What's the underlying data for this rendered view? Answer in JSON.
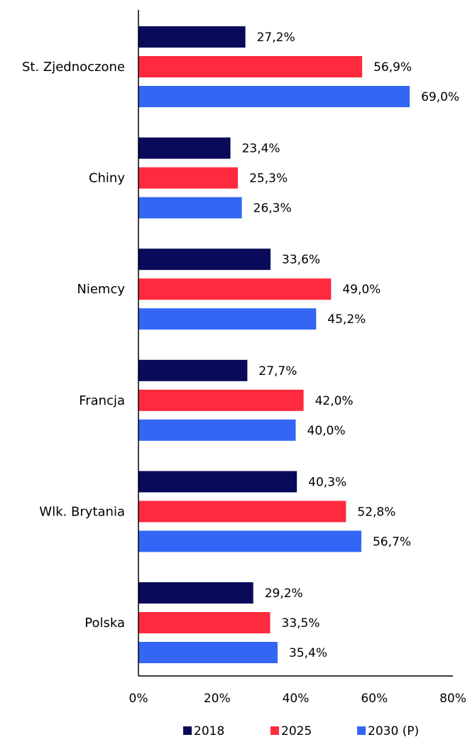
{
  "chart_data": {
    "type": "bar",
    "orientation": "horizontal",
    "categories": [
      "St. Zjednoczone",
      "Chiny",
      "Niemcy",
      "Francja",
      "Wlk. Brytania",
      "Polska"
    ],
    "series": [
      {
        "name": "2018",
        "color": "#0a0a5a",
        "values": [
          27.2,
          23.4,
          33.6,
          27.7,
          40.3,
          29.2
        ],
        "labels": [
          "27,2%",
          "23,4%",
          "33,6%",
          "27,7%",
          "40,3%",
          "29,2%"
        ]
      },
      {
        "name": "2025",
        "color": "#ff2a3d",
        "values": [
          56.9,
          25.3,
          49.0,
          42.0,
          52.8,
          33.5
        ],
        "labels": [
          "56,9%",
          "25,3%",
          "49,0%",
          "42,0%",
          "52,8%",
          "33,5%"
        ]
      },
      {
        "name": "2030 (P)",
        "color": "#3366f5",
        "values": [
          69.0,
          26.3,
          45.2,
          40.0,
          56.7,
          35.4
        ],
        "labels": [
          "69,0%",
          "26,3%",
          "45,2%",
          "40,0%",
          "56,7%",
          "35,4%"
        ]
      }
    ],
    "xlim": [
      0,
      80
    ],
    "xticks": [
      0,
      20,
      40,
      60,
      80
    ],
    "xtick_labels": [
      "0%",
      "20%",
      "40%",
      "60%",
      "80%"
    ],
    "legend_position": "bottom",
    "grid": false
  }
}
